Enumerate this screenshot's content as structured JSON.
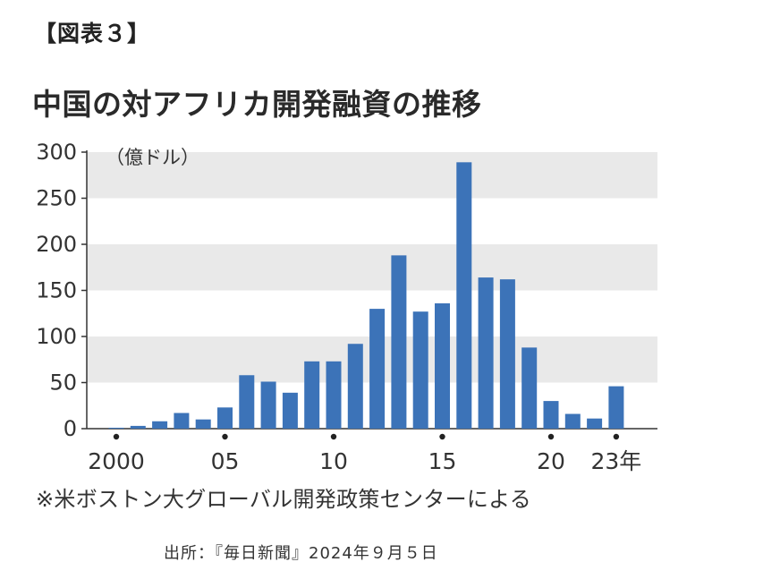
{
  "header": {
    "figure_label": "【図表３】",
    "title": "中国の対アフリカ開発融資の推移"
  },
  "chart_data": {
    "type": "bar",
    "title": "中国の対アフリカ開発融資の推移",
    "unit_label": "（億ドル）",
    "categories": [
      "2000",
      "2001",
      "2002",
      "2003",
      "2004",
      "2005",
      "2006",
      "2007",
      "2008",
      "2009",
      "2010",
      "2011",
      "2012",
      "2013",
      "2014",
      "2015",
      "2016",
      "2017",
      "2018",
      "2019",
      "2020",
      "2021",
      "2022",
      "2023"
    ],
    "values": [
      1,
      3,
      8,
      17,
      10,
      23,
      58,
      51,
      39,
      73,
      73,
      92,
      130,
      188,
      127,
      136,
      289,
      164,
      162,
      88,
      30,
      16,
      11,
      46
    ],
    "x_tick_labels": [
      "2000",
      "05",
      "10",
      "15",
      "20",
      "23年"
    ],
    "x_tick_positions": [
      "2000",
      "2005",
      "2010",
      "2015",
      "2020",
      "2023"
    ],
    "y_ticks": [
      0,
      50,
      100,
      150,
      200,
      250,
      300
    ],
    "ylim": [
      0,
      300
    ],
    "bar_color": "#3c73b8",
    "band_color": "#e9e9e9",
    "grid": true,
    "xlabel": "",
    "ylabel": ""
  },
  "footer": {
    "note": "※米ボストン大グローバル開発政策センターによる",
    "source": "出所：『毎日新聞』2024年９月５日"
  }
}
